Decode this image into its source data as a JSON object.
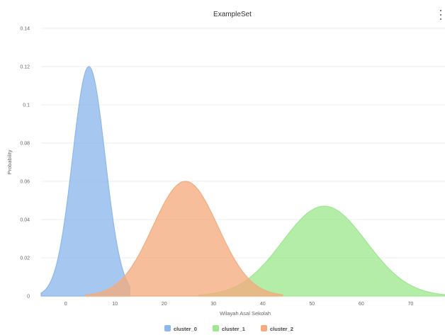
{
  "chart_data": {
    "type": "area",
    "title": "ExampleSet",
    "xlabel": "Wilayah Asal Sekolah",
    "ylabel": "Probability",
    "xlim": [
      -5,
      77
    ],
    "ylim": [
      0,
      0.14
    ],
    "x_ticks": [
      0,
      10,
      20,
      30,
      40,
      50,
      60,
      70
    ],
    "y_ticks": [
      0,
      0.02,
      0.04,
      0.06,
      0.08,
      0.1,
      0.12,
      0.14
    ],
    "grid": true,
    "legend": "bottom-center",
    "series": [
      {
        "name": "cluster_0",
        "color": "#8db8ec",
        "curve": "gaussian",
        "mean": 4.7,
        "std": 3.3,
        "peak": 0.12,
        "x_range": [
          -5,
          13
        ]
      },
      {
        "name": "cluster_1",
        "color": "#9ee890",
        "curve": "gaussian",
        "mean": 52.5,
        "std": 8.5,
        "peak": 0.047,
        "x_range": [
          27,
          77
        ]
      },
      {
        "name": "cluster_2",
        "color": "#f4ac7e",
        "curve": "gaussian",
        "mean": 24.3,
        "std": 6.6,
        "peak": 0.06,
        "x_range": [
          4,
          44
        ]
      }
    ]
  }
}
